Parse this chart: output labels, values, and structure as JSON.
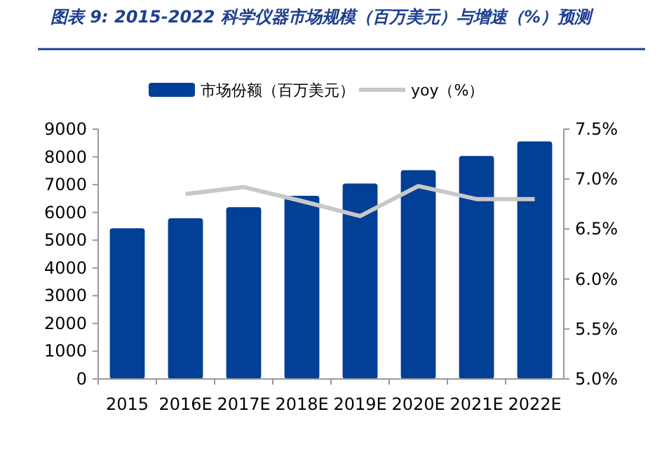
{
  "chart_data": {
    "type": "bar",
    "title": "图表 9:  2015-2022 科学仪器市场规模（百万美元）与增速（%）预测",
    "categories": [
      "2015",
      "2016E",
      "2017E",
      "2018E",
      "2019E",
      "2020E",
      "2021E",
      "2022E"
    ],
    "series": [
      {
        "name": "市场份额（百万美元）",
        "color": "#023f96",
        "values": [
          5430,
          5790,
          6190,
          6600,
          7040,
          7520,
          8030,
          8560
        ]
      },
      {
        "name": "yoy（%）",
        "type": "line",
        "axis": "y2",
        "color": "#c8c8c8",
        "values": [
          null,
          6.85,
          6.92,
          6.78,
          6.63,
          6.93,
          6.8,
          6.8
        ]
      }
    ],
    "ylim": [
      0,
      9000
    ],
    "yticks": [
      0,
      1000,
      2000,
      3000,
      4000,
      5000,
      6000,
      7000,
      8000,
      9000
    ],
    "y2lim": [
      5,
      7.5
    ],
    "y2ticks": [
      {
        "value": 5,
        "label": "5.0%"
      },
      {
        "value": 5.5,
        "label": "5.5%"
      },
      {
        "value": 6,
        "label": "6.0%"
      },
      {
        "value": 6.5,
        "label": "6.5%"
      },
      {
        "value": 7,
        "label": "7.0%"
      },
      {
        "value": 7.5,
        "label": "7.5%"
      }
    ],
    "legend": "top",
    "marker": "none",
    "grid": false
  }
}
